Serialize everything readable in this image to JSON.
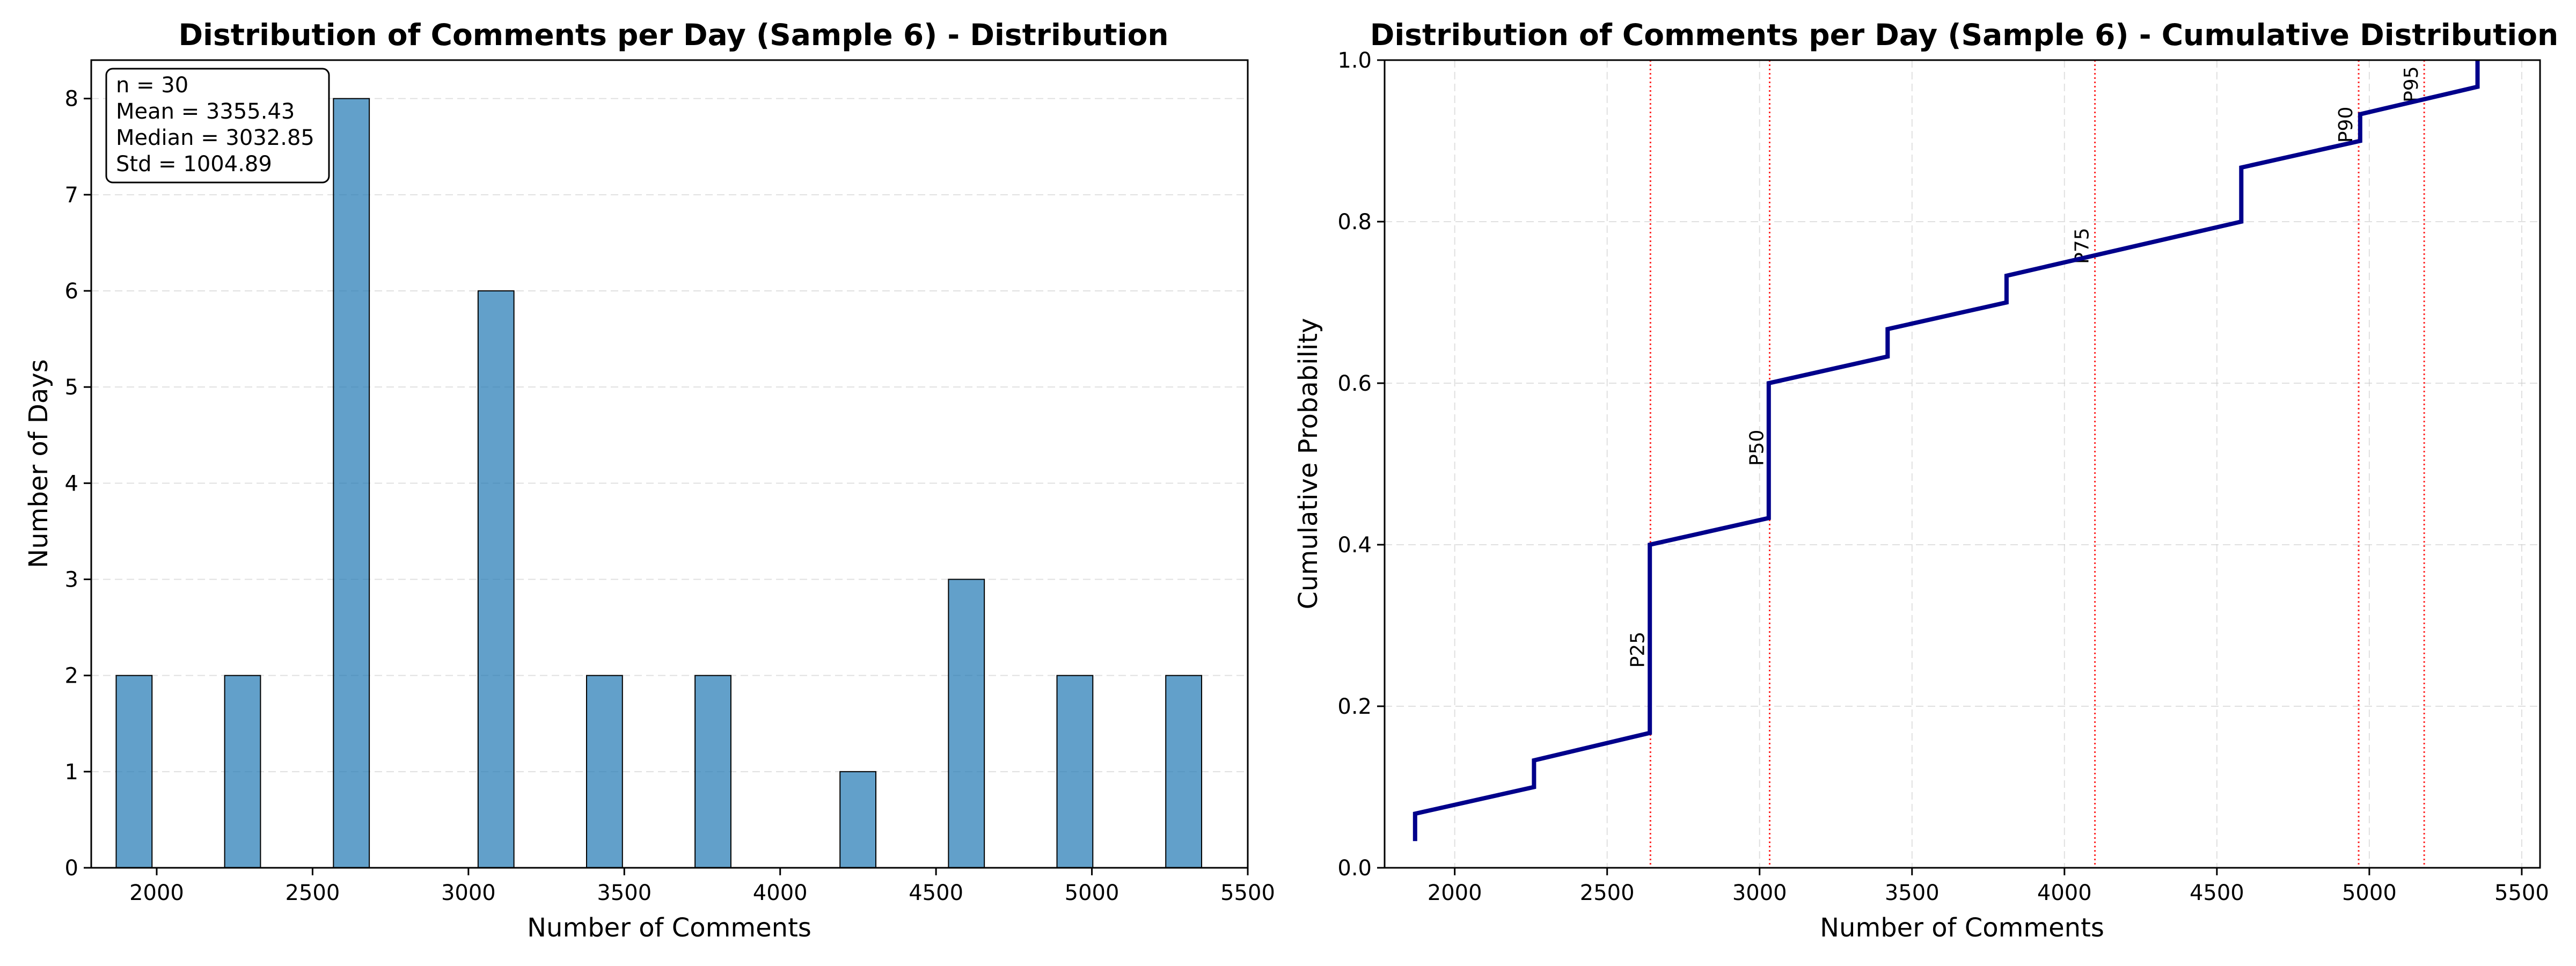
{
  "chart_data": [
    {
      "type": "bar",
      "title": "Distribution of Comments per Day (Sample 6) - Distribution",
      "xlabel": "Number of Comments",
      "ylabel": "Number of Days",
      "xlim": [
        1790,
        5500
      ],
      "ylim": [
        0,
        8.4
      ],
      "xticks": [
        2000,
        2500,
        3000,
        3500,
        4000,
        4500,
        5000,
        5500
      ],
      "yticks": [
        0,
        1,
        2,
        3,
        4,
        5,
        6,
        7,
        8
      ],
      "grid": true,
      "bar_color": "#1f77b4",
      "bins": [
        {
          "x0": 1870,
          "x1": 1985,
          "count": 2
        },
        {
          "x0": 2218,
          "x1": 2333,
          "count": 2
        },
        {
          "x0": 2567,
          "x1": 2682,
          "count": 8
        },
        {
          "x0": 3031,
          "x1": 3146,
          "count": 6
        },
        {
          "x0": 3379,
          "x1": 3494,
          "count": 2
        },
        {
          "x0": 3727,
          "x1": 3842,
          "count": 2
        },
        {
          "x0": 4192,
          "x1": 4307,
          "count": 1
        },
        {
          "x0": 4540,
          "x1": 4655,
          "count": 3
        },
        {
          "x0": 4888,
          "x1": 5003,
          "count": 2
        },
        {
          "x0": 5237,
          "x1": 5352,
          "count": 2
        }
      ],
      "stats": [
        "n = 30",
        "Mean = 3355.43",
        "Median = 3032.85",
        "Std = 1004.89"
      ]
    },
    {
      "type": "line",
      "title": "Distribution of Comments per Day (Sample 6) - Cumulative Distribution",
      "xlabel": "Number of Comments",
      "ylabel": "Cumulative Probability",
      "xlim": [
        1770,
        5560
      ],
      "ylim": [
        0,
        1.0
      ],
      "xticks": [
        2000,
        2500,
        3000,
        3500,
        4000,
        4500,
        5000,
        5500
      ],
      "yticks": [
        0.0,
        0.2,
        0.4,
        0.6,
        0.8,
        1.0
      ],
      "ytick_labels": [
        "0.0",
        "0.2",
        "0.4",
        "0.6",
        "0.8",
        "1.0"
      ],
      "grid": true,
      "line_color": "#00008b",
      "percentile_color": "#ff0000",
      "points": [
        [
          1870,
          0.033
        ],
        [
          1870,
          0.067
        ],
        [
          2260,
          0.1
        ],
        [
          2260,
          0.133
        ],
        [
          2640,
          0.167
        ],
        [
          2640,
          0.4
        ],
        [
          3030,
          0.433
        ],
        [
          3030,
          0.6
        ],
        [
          3420,
          0.633
        ],
        [
          3420,
          0.667
        ],
        [
          3810,
          0.7
        ],
        [
          3810,
          0.733
        ],
        [
          4580,
          0.8
        ],
        [
          4580,
          0.867
        ],
        [
          4970,
          0.9
        ],
        [
          4970,
          0.933
        ],
        [
          5355,
          0.967
        ],
        [
          5355,
          1.0
        ]
      ],
      "percentiles": [
        {
          "label": "P25",
          "x": 2642,
          "label_y": 0.27
        },
        {
          "label": "P50",
          "x": 3033,
          "label_y": 0.52
        },
        {
          "label": "P75",
          "x": 4100,
          "label_y": 0.77
        },
        {
          "label": "P90",
          "x": 4965,
          "label_y": 0.92
        },
        {
          "label": "P95",
          "x": 5180,
          "label_y": 0.97
        }
      ]
    }
  ]
}
